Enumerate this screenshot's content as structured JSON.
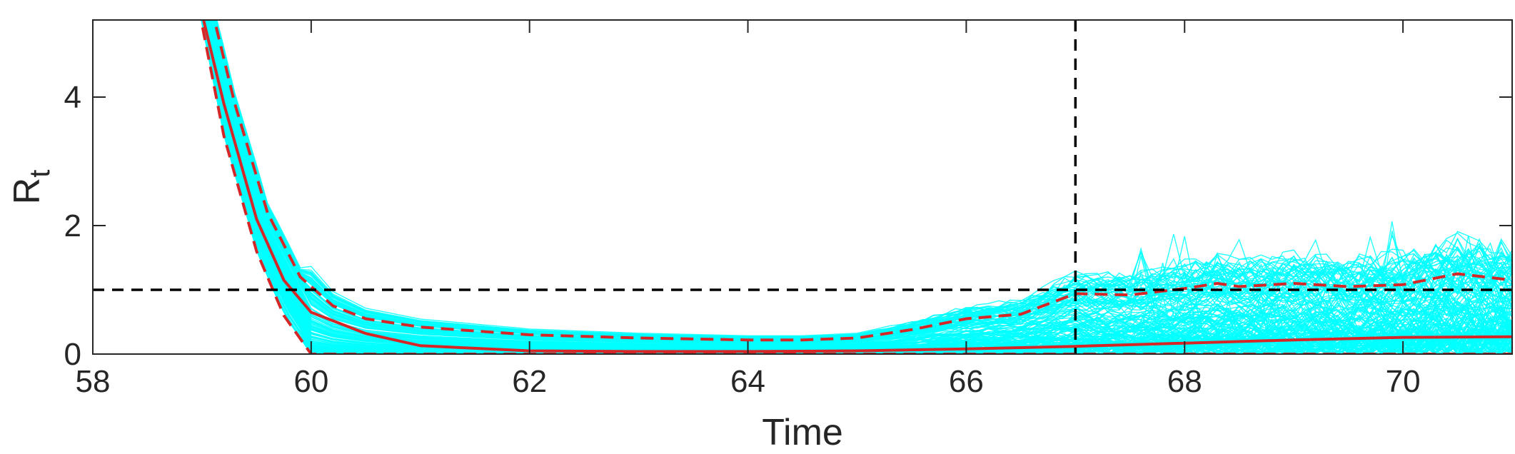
{
  "chart_data": {
    "type": "line",
    "title": "",
    "xlabel": "Time",
    "ylabel_main": "R",
    "ylabel_sub": "t",
    "xlim": [
      58,
      71
    ],
    "ylim": [
      0,
      5.2
    ],
    "xticks": [
      58,
      60,
      62,
      64,
      66,
      68,
      70
    ],
    "yticks": [
      0,
      2,
      4
    ],
    "grid": false,
    "legend": "none",
    "reference_lines": {
      "horizontal_y": 1,
      "vertical_x": 67
    },
    "colors": {
      "simulations": "#00FFFF",
      "median": "#D62728",
      "bounds": "#D62728",
      "reference": "#000000",
      "axis": "#262626"
    },
    "median": {
      "x": [
        58.9,
        59.2,
        59.5,
        59.75,
        60.0,
        60.5,
        61.0,
        62.0,
        63.0,
        64.0,
        65.0,
        66.0,
        67.0,
        68.0,
        69.0,
        70.0,
        71.0
      ],
      "y": [
        6.0,
        3.9,
        2.1,
        1.15,
        0.65,
        0.32,
        0.13,
        0.05,
        0.04,
        0.04,
        0.05,
        0.08,
        0.12,
        0.17,
        0.22,
        0.26,
        0.27
      ]
    },
    "upper_bound": {
      "x": [
        59.0,
        59.3,
        59.6,
        59.9,
        60.2,
        60.5,
        61.0,
        62.0,
        63.0,
        64.0,
        64.5,
        65.0,
        65.5,
        66.0,
        66.5,
        67.0,
        67.5,
        68.0,
        68.3,
        68.5,
        69.0,
        69.5,
        70.0,
        70.5,
        71.0
      ],
      "y": [
        6.0,
        3.9,
        2.2,
        1.2,
        0.75,
        0.55,
        0.42,
        0.3,
        0.25,
        0.22,
        0.22,
        0.25,
        0.38,
        0.55,
        0.62,
        0.94,
        0.92,
        1.02,
        1.1,
        1.05,
        1.1,
        1.05,
        1.08,
        1.25,
        1.15
      ]
    },
    "lower_bound": {
      "x": [
        58.9,
        59.2,
        59.5,
        59.75,
        60.0,
        71.0
      ],
      "y": [
        6.0,
        3.4,
        1.6,
        0.6,
        0.0,
        0.0
      ]
    }
  }
}
